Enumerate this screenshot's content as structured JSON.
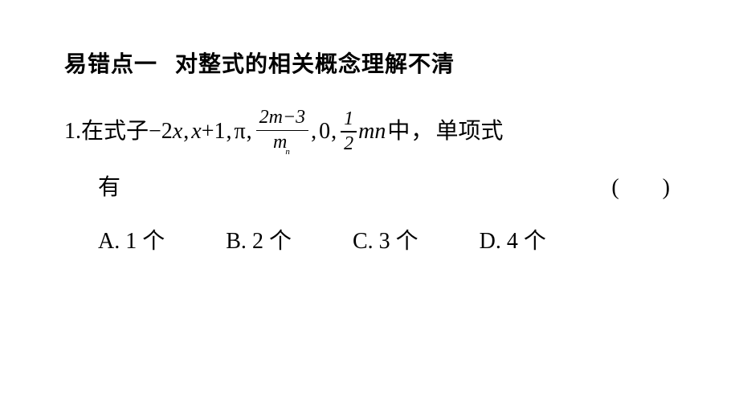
{
  "text_color": "#000000",
  "background_color": "#ffffff",
  "font_family_cn": "SimSun",
  "font_family_math": "Times New Roman",
  "heading": {
    "left": "易错点一",
    "right": "对整式的相关概念理解不清",
    "fontsize_pt": 21,
    "bold": true
  },
  "question": {
    "number": "1.",
    "prefix": "在式子",
    "items": {
      "e1_text": "−2",
      "e1_var": "x",
      "e2_var": "x",
      "e2_text": "+1",
      "e3_pi": "π",
      "e4_num_left": "2",
      "e4_num_var": "m",
      "e4_num_right": "−3",
      "e4_den_var": "m",
      "e4_sub": "n",
      "e5": "0",
      "e6_num": "1",
      "e6_den": "2",
      "e6_var": "mn"
    },
    "mid": " 中",
    "suffix": "单项式",
    "line2_left": "有",
    "paren_open": "(",
    "paren_close": ")",
    "comma": ",",
    "comma_cn": "，",
    "fontsize_pt": 21
  },
  "options": {
    "a": {
      "letter": "A.",
      "text": " 1 个"
    },
    "b": {
      "letter": "B.",
      "text": " 2 个"
    },
    "c": {
      "letter": "C.",
      "text": " 3 个"
    },
    "d": {
      "letter": "D.",
      "text": " 4 个"
    },
    "fontsize_pt": 21
  }
}
